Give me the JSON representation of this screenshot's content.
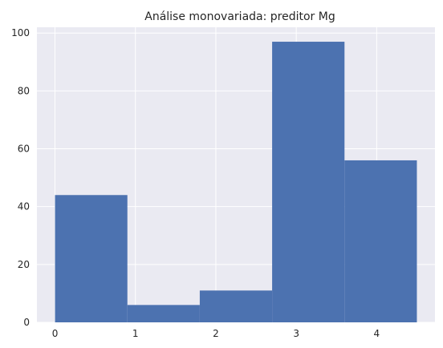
{
  "chart_data": {
    "type": "bar",
    "title": "Análise monovariada: preditor Mg",
    "xlabel": "",
    "ylabel": "",
    "xlim": [
      -0.225,
      4.725
    ],
    "ylim": [
      0,
      102
    ],
    "x_ticks": [
      0,
      1,
      2,
      3,
      4
    ],
    "y_ticks": [
      0,
      20,
      40,
      60,
      80,
      100
    ],
    "grid": true,
    "bins": [
      {
        "x0": 0.0,
        "x1": 0.9,
        "value": 44
      },
      {
        "x0": 0.9,
        "x1": 1.8,
        "value": 6
      },
      {
        "x0": 1.8,
        "x1": 2.7,
        "value": 11
      },
      {
        "x0": 2.7,
        "x1": 3.6,
        "value": 97
      },
      {
        "x0": 3.6,
        "x1": 4.5,
        "value": 56
      }
    ],
    "colors": {
      "bar": "#4c72b0",
      "background": "#eaeaf2",
      "grid": "#ffffff"
    }
  }
}
